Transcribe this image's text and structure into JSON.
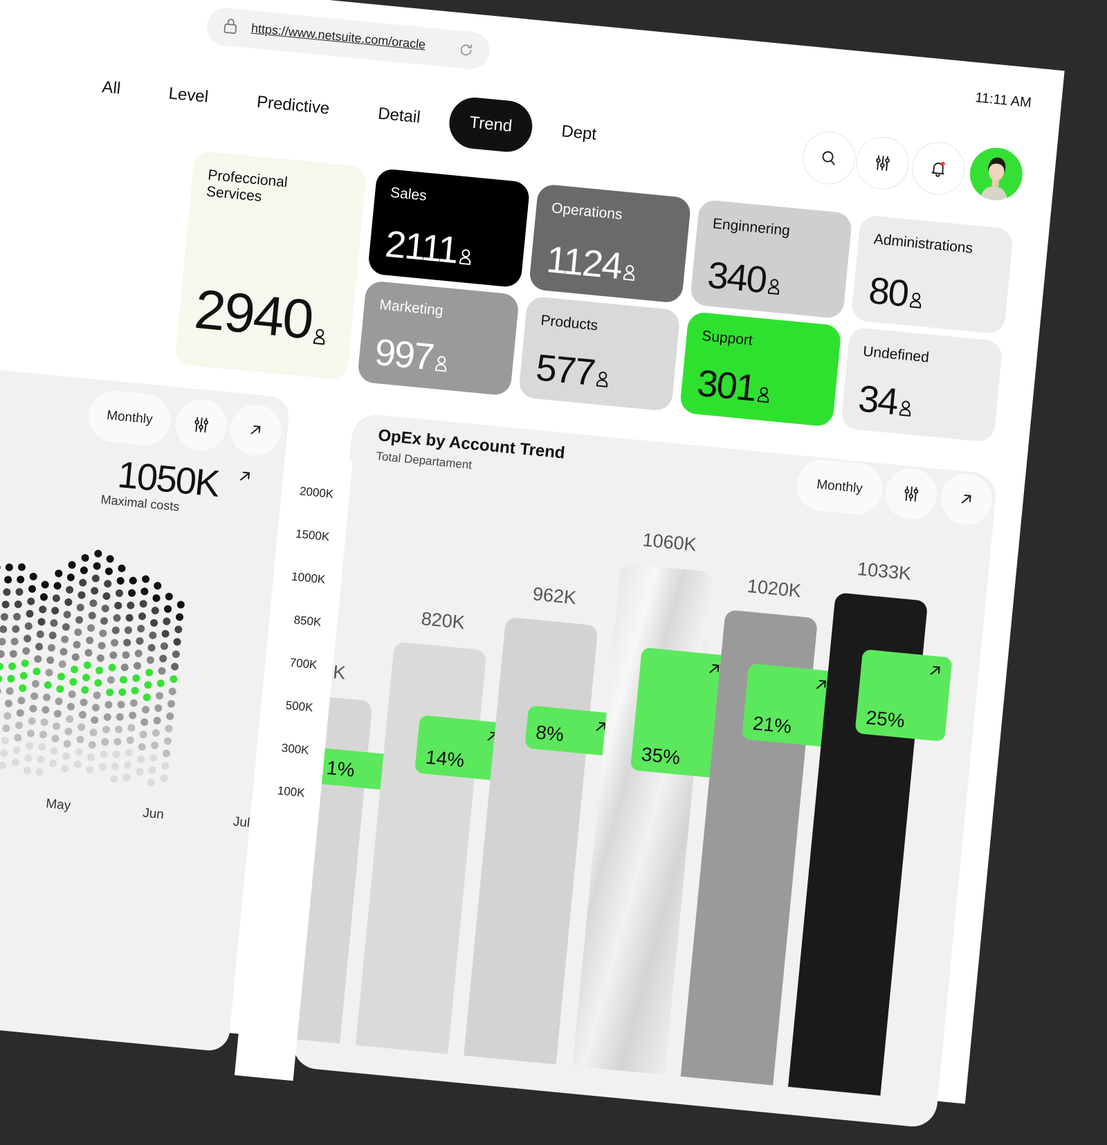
{
  "browser": {
    "url": "https://www.netsuite.com/oracle"
  },
  "tabs": [
    {
      "label": "All",
      "active": false
    },
    {
      "label": "Level",
      "active": false
    },
    {
      "label": "Predictive",
      "active": false
    },
    {
      "label": "Detail",
      "active": false
    },
    {
      "label": "Trend",
      "active": true
    },
    {
      "label": "Dept",
      "active": false
    }
  ],
  "time": "11:11 AM",
  "departments": [
    {
      "name": "Profeccional Services",
      "count": 2940
    },
    {
      "name": "Sales",
      "count": 2111
    },
    {
      "name": "Operations",
      "count": 1124
    },
    {
      "name": "Enginnering",
      "count": 340
    },
    {
      "name": "Administrations",
      "count": 80
    },
    {
      "name": "Marketing",
      "count": 997
    },
    {
      "name": "Products",
      "count": 577
    },
    {
      "name": "Support",
      "count": 301
    },
    {
      "name": "Undefined",
      "count": 34
    }
  ],
  "cost_card": {
    "period": "Monthly",
    "value": "1050K",
    "label": "Maximal costs",
    "months": [
      "May",
      "Jun",
      "Jul"
    ]
  },
  "opex_chart": {
    "title": "OpEx by Account Trend",
    "subtitle": "Total Departament",
    "period": "Monthly",
    "y_labels": [
      "2000K",
      "1500K",
      "1000K",
      "850K",
      "700K",
      "500K",
      "300K",
      "100K"
    ],
    "bars": [
      {
        "label": "K",
        "change": "1%"
      },
      {
        "label": "820K",
        "change": "14%"
      },
      {
        "label": "962K",
        "change": "8%"
      },
      {
        "label": "1060K",
        "change": "35%"
      },
      {
        "label": "1020K",
        "change": "21%"
      },
      {
        "label": "1033K",
        "change": "25%"
      }
    ]
  }
}
